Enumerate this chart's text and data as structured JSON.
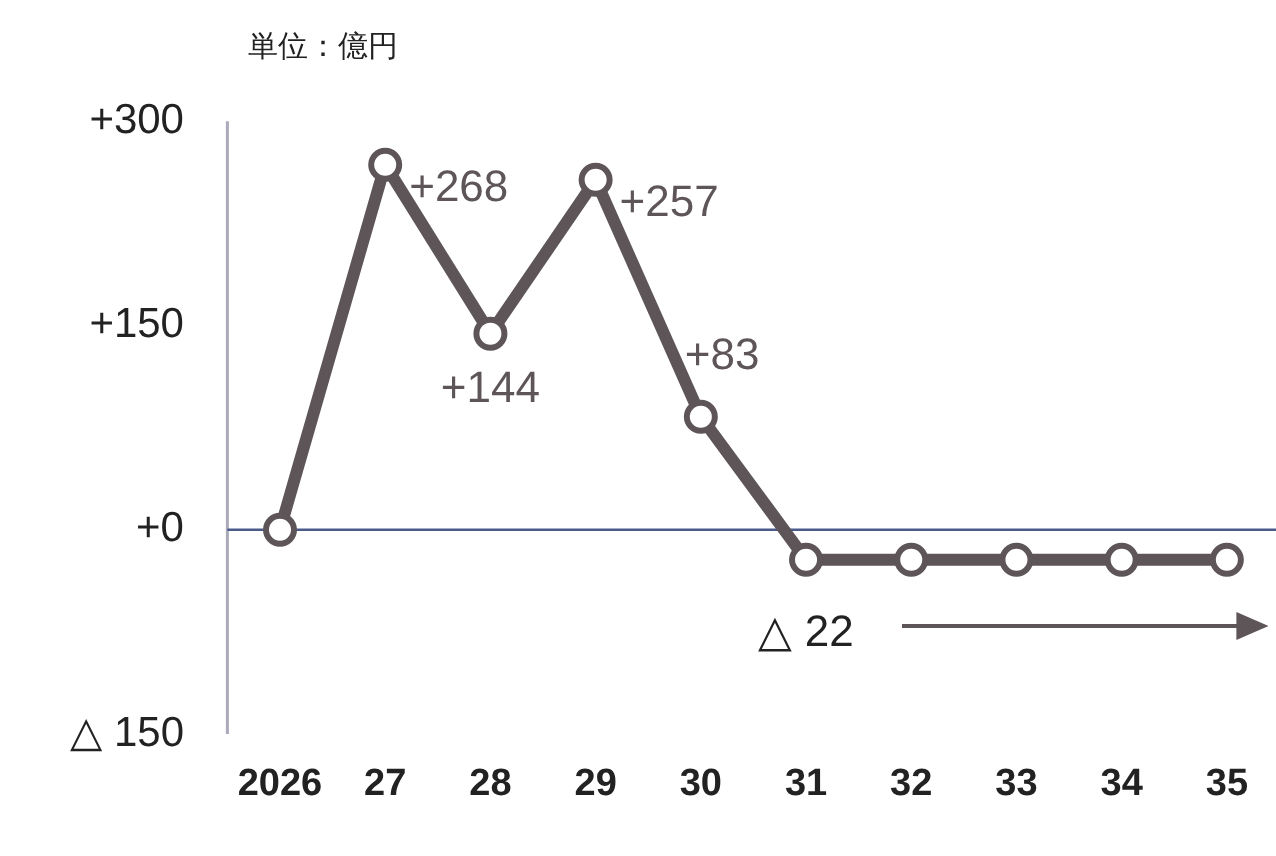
{
  "chart_data": {
    "type": "line",
    "categories": [
      "2026",
      "27",
      "28",
      "29",
      "30",
      "31",
      "32",
      "33",
      "34",
      "35"
    ],
    "series": [
      {
        "color": "#5e5558",
        "values": [
          0,
          268,
          144,
          257,
          83,
          -22,
          -22,
          -22,
          -22,
          -22
        ],
        "value_labels": [
          null,
          "+268",
          "+144",
          "+257",
          "+83",
          null,
          null,
          null,
          null,
          null
        ]
      }
    ],
    "ylim": [
      -150,
      300
    ],
    "yticks": [
      {
        "value": -150,
        "label": "△ 150"
      },
      {
        "value": 0,
        "label": "+0"
      },
      {
        "value": 150,
        "label": "+150"
      },
      {
        "value": 300,
        "label": "+300"
      }
    ],
    "ref_lines": [
      {
        "axis": "y",
        "value": 0,
        "color": "#4a5a8a"
      }
    ],
    "annotations": [
      "単位：億円",
      {
        "text": "△ 22",
        "x": "31",
        "y": -22
      }
    ],
    "grid": false,
    "legend": false,
    "marker": "circle",
    "line_style": "solid"
  }
}
